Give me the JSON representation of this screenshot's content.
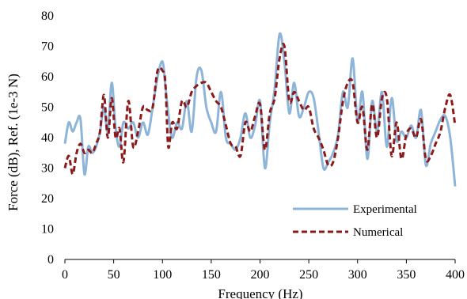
{
  "chart_data": {
    "type": "line",
    "xlabel": "Frequency (Hz)",
    "ylabel": "Force (dB), Ref. (1e-3 N)",
    "xlim": [
      0,
      400
    ],
    "ylim": [
      0,
      80
    ],
    "x_ticks": [
      "0",
      "50",
      "100",
      "150",
      "200",
      "250",
      "300",
      "350",
      "400"
    ],
    "y_ticks": [
      "0",
      "10",
      "20",
      "30",
      "40",
      "50",
      "60",
      "70",
      "80"
    ],
    "grid": false,
    "legend_position": "bottom-right",
    "series": [
      {
        "name": "Experimental",
        "color": "#8eb4d8",
        "style": "solid",
        "x": [
          0,
          4,
          8,
          12,
          16,
          20,
          24,
          28,
          32,
          36,
          40,
          44,
          48,
          52,
          56,
          60,
          65,
          70,
          75,
          80,
          85,
          90,
          95,
          100,
          103,
          106,
          110,
          115,
          120,
          125,
          130,
          135,
          140,
          145,
          150,
          155,
          160,
          165,
          170,
          175,
          180,
          185,
          190,
          195,
          200,
          205,
          210,
          215,
          220,
          225,
          230,
          235,
          240,
          245,
          250,
          255,
          260,
          265,
          270,
          275,
          280,
          285,
          290,
          295,
          300,
          305,
          310,
          315,
          320,
          325,
          330,
          335,
          340,
          345,
          350,
          355,
          360,
          365,
          370,
          375,
          380,
          385,
          390,
          395,
          400
        ],
        "y": [
          38,
          45,
          42,
          45,
          46,
          28,
          37,
          35,
          37,
          42,
          50,
          42,
          58,
          43,
          37,
          45,
          43,
          45,
          40,
          45,
          41,
          50,
          60,
          65,
          57,
          48,
          40,
          45,
          43,
          52,
          42,
          60,
          62,
          50,
          45,
          42,
          55,
          40,
          38,
          36,
          40,
          48,
          40,
          44,
          52,
          30,
          45,
          56,
          74,
          65,
          48,
          58,
          47,
          50,
          55,
          53,
          42,
          30,
          32,
          35,
          41,
          55,
          50,
          66,
          45,
          55,
          33,
          52,
          42,
          55,
          37,
          53,
          39,
          42,
          40,
          44,
          40,
          49,
          31,
          38,
          42,
          46,
          47,
          40,
          24
        ]
      },
      {
        "name": "Numerical",
        "color": "#8b1a1a",
        "style": "dashed",
        "x": [
          0,
          4,
          8,
          12,
          16,
          20,
          24,
          28,
          32,
          36,
          40,
          44,
          48,
          52,
          56,
          60,
          65,
          70,
          75,
          80,
          85,
          90,
          95,
          100,
          103,
          106,
          110,
          115,
          120,
          125,
          130,
          135,
          140,
          145,
          150,
          155,
          160,
          165,
          170,
          175,
          180,
          185,
          190,
          195,
          200,
          205,
          210,
          215,
          220,
          225,
          230,
          235,
          240,
          245,
          250,
          255,
          260,
          265,
          270,
          275,
          280,
          285,
          290,
          295,
          300,
          305,
          310,
          315,
          320,
          325,
          330,
          335,
          340,
          345,
          350,
          355,
          360,
          365,
          370,
          375,
          380,
          385,
          390,
          395,
          400
        ],
        "y": [
          30,
          34,
          28,
          35,
          38,
          35,
          36,
          35,
          38,
          42,
          54,
          40,
          53,
          40,
          43,
          32,
          52,
          37,
          42,
          50,
          49,
          50,
          62,
          62,
          58,
          37,
          45,
          43,
          52,
          50,
          55,
          57,
          58,
          58,
          55,
          52,
          50,
          44,
          38,
          37,
          34,
          45,
          42,
          47,
          51,
          36,
          48,
          53,
          66,
          70,
          52,
          55,
          52,
          49,
          50,
          43,
          40,
          36,
          31,
          32,
          40,
          52,
          58,
          58,
          45,
          50,
          36,
          51,
          40,
          53,
          53,
          34,
          45,
          33,
          41,
          43,
          40,
          46,
          33,
          34,
          38,
          42,
          50,
          54,
          44
        ]
      }
    ]
  }
}
